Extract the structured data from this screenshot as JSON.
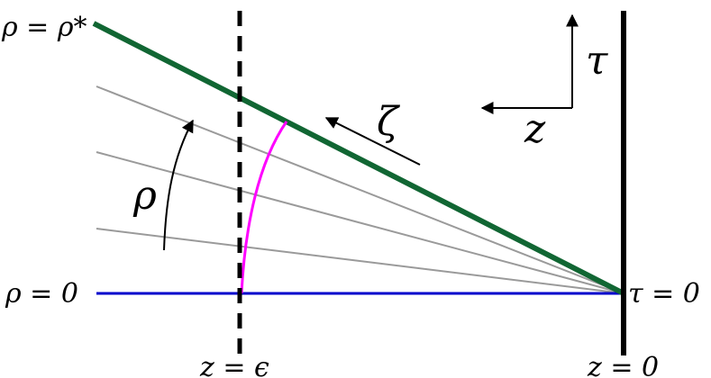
{
  "labels": {
    "rho_star": "ρ = ρ*",
    "rho_zero": "ρ = 0",
    "tau_zero": "τ = 0",
    "z_eps": "z = ϵ",
    "z_zero": "z = 0",
    "rho": "ρ",
    "zeta": "ζ",
    "tau_axis": "τ",
    "z_axis": "z"
  },
  "colors": {
    "green": "#116633",
    "blue": "#0000cc",
    "magenta": "#ff00ff",
    "gray": "#9a9a9a",
    "black": "#000000"
  }
}
